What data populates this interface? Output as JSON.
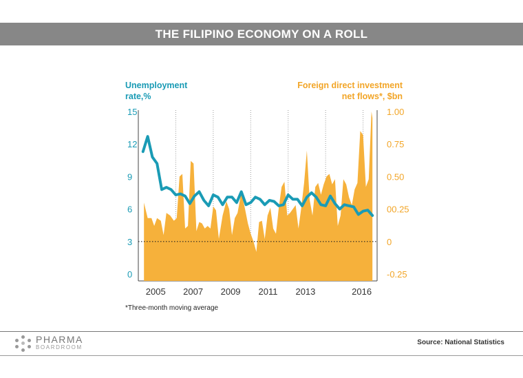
{
  "header": {
    "title": "THE FILIPINO ECONOMY ON A ROLL"
  },
  "axes": {
    "left_label_line1": "Unemployment",
    "left_label_line2": "rate,%",
    "right_label_line1": "Foreign direct investment",
    "right_label_line2": "net flows*, $bn"
  },
  "footnote": "*Three-month moving average",
  "footer": {
    "brand_name": "PHARMA",
    "brand_sub": "BOARDROOM",
    "source": "Source: National Statistics"
  },
  "colors": {
    "unemployment": "#1a9bb5",
    "fdi": "#f6b13b",
    "title_bar": "#878787"
  },
  "chart_data": {
    "type": "line",
    "x_tick_labels": [
      "2005",
      "2007",
      "2009",
      "2011",
      "2013",
      "2016"
    ],
    "left_axis": {
      "label": "Unemployment rate,%",
      "ticks": [
        "0",
        "3",
        "6",
        "9",
        "12",
        "15"
      ],
      "ylim": [
        0,
        15
      ]
    },
    "right_axis": {
      "label": "Foreign direct investment net flows*, $bn",
      "ticks": [
        "-0.25",
        "0",
        "00.25",
        "0.50",
        "0.75",
        "1.00"
      ],
      "ylim": [
        -0.25,
        1.0
      ]
    },
    "zero_line": "dotted at FDI = 0",
    "grid": "vertical dotted lines",
    "series": [
      {
        "name": "Unemployment rate,%",
        "axis": "left",
        "style": "line",
        "x": [
          2004.25,
          2004.5,
          2004.75,
          2005.0,
          2005.25,
          2005.5,
          2005.75,
          2006.0,
          2006.25,
          2006.5,
          2006.75,
          2007.0,
          2007.25,
          2007.5,
          2007.75,
          2008.0,
          2008.25,
          2008.5,
          2008.75,
          2009.0,
          2009.25,
          2009.5,
          2009.75,
          2010.0,
          2010.25,
          2010.5,
          2010.75,
          2011.0,
          2011.25,
          2011.5,
          2011.75,
          2012.0,
          2012.25,
          2012.5,
          2012.75,
          2013.0,
          2013.25,
          2013.5,
          2013.75,
          2014.0,
          2014.25,
          2014.5,
          2014.75,
          2015.0,
          2015.25,
          2015.5,
          2015.75,
          2016.0,
          2016.25,
          2016.5
        ],
        "values": [
          11.3,
          12.7,
          10.8,
          10.2,
          7.8,
          8.0,
          7.8,
          7.3,
          7.4,
          7.2,
          6.5,
          7.2,
          7.6,
          6.8,
          6.3,
          7.3,
          7.1,
          6.4,
          7.1,
          7.1,
          6.6,
          7.6,
          6.4,
          6.6,
          7.1,
          6.9,
          6.4,
          6.8,
          6.7,
          6.3,
          6.4,
          7.3,
          6.9,
          6.9,
          6.3,
          7.1,
          7.5,
          7.1,
          6.4,
          6.3,
          7.2,
          6.5,
          6.0,
          6.4,
          6.3,
          6.2,
          5.5,
          5.8,
          5.9,
          5.4
        ]
      },
      {
        "name": "Foreign direct investment net flows*, $bn",
        "axis": "right",
        "style": "area",
        "x": [
          2004.3,
          2004.5,
          2004.7,
          2004.85,
          2005.0,
          2005.2,
          2005.35,
          2005.5,
          2005.7,
          2005.9,
          2006.05,
          2006.2,
          2006.35,
          2006.5,
          2006.65,
          2006.8,
          2006.95,
          2007.1,
          2007.25,
          2007.4,
          2007.55,
          2007.7,
          2007.85,
          2008.0,
          2008.15,
          2008.3,
          2008.5,
          2008.7,
          2008.85,
          2009.0,
          2009.15,
          2009.3,
          2009.5,
          2009.7,
          2009.85,
          2010.0,
          2010.15,
          2010.3,
          2010.45,
          2010.6,
          2010.75,
          2010.9,
          2011.05,
          2011.2,
          2011.35,
          2011.5,
          2011.65,
          2011.8,
          2011.95,
          2012.1,
          2012.25,
          2012.4,
          2012.55,
          2012.7,
          2012.85,
          2013.0,
          2013.15,
          2013.3,
          2013.45,
          2013.6,
          2013.75,
          2013.9,
          2014.05,
          2014.2,
          2014.35,
          2014.5,
          2014.65,
          2014.8,
          2014.95,
          2015.1,
          2015.25,
          2015.4,
          2015.55,
          2015.7,
          2015.85,
          2016.0,
          2016.15,
          2016.3,
          2016.45,
          2016.5
        ],
        "values": [
          0.3,
          0.18,
          0.18,
          0.12,
          0.18,
          0.16,
          0.05,
          0.22,
          0.2,
          0.16,
          0.18,
          0.5,
          0.52,
          0.1,
          0.12,
          0.62,
          0.6,
          0.08,
          0.15,
          0.14,
          0.1,
          0.12,
          0.1,
          0.27,
          0.24,
          0.02,
          0.2,
          0.31,
          0.25,
          0.05,
          0.18,
          0.22,
          0.38,
          0.25,
          0.14,
          0.06,
          0.0,
          -0.08,
          0.15,
          0.16,
          0.02,
          0.2,
          0.26,
          0.1,
          0.06,
          0.26,
          0.42,
          0.46,
          0.2,
          0.22,
          0.25,
          0.28,
          0.1,
          0.26,
          0.45,
          0.7,
          0.32,
          0.2,
          0.42,
          0.45,
          0.36,
          0.44,
          0.5,
          0.52,
          0.44,
          0.48,
          0.12,
          0.2,
          0.48,
          0.44,
          0.34,
          0.28,
          0.4,
          0.45,
          0.85,
          0.82,
          0.42,
          0.48,
          1.0,
          0.95
        ]
      }
    ]
  }
}
